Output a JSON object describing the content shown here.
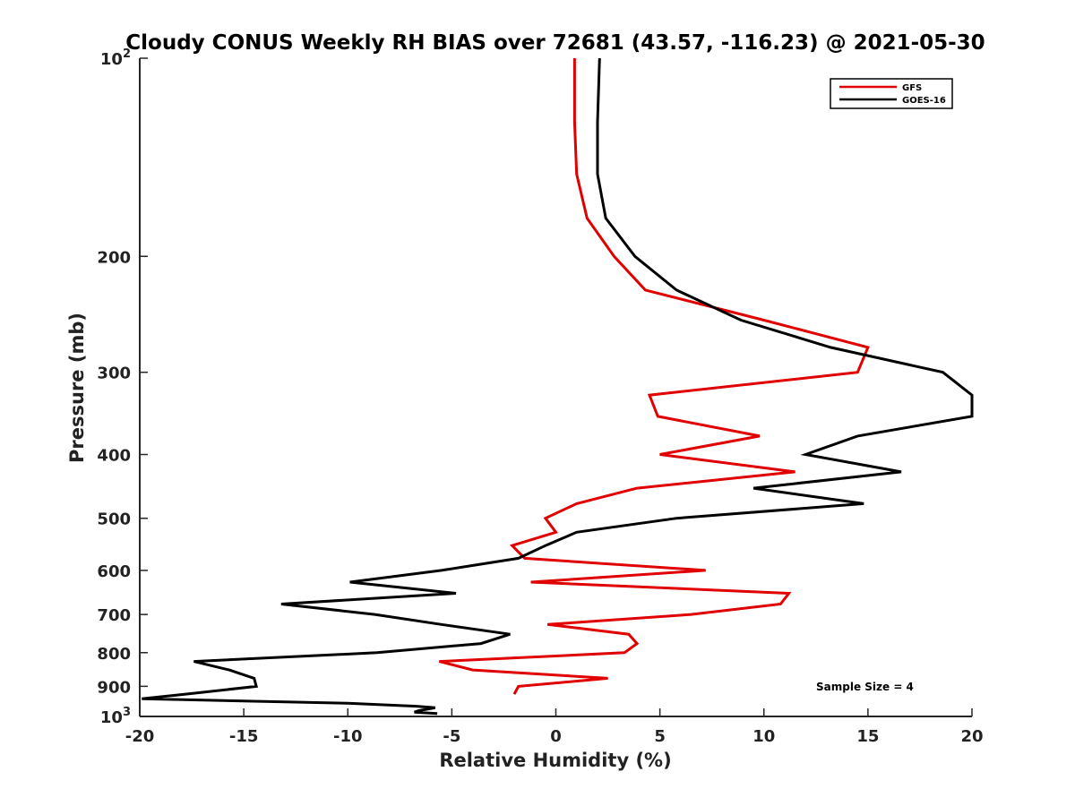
{
  "chart_data": {
    "type": "line",
    "title": "Cloudy CONUS Weekly RH BIAS over 72681 (43.57, -116.23) @ 2021-05-30",
    "xlabel": "Relative Humidity (%)",
    "ylabel": "Pressure (mb)",
    "xlim": [
      -20,
      20
    ],
    "ylim": [
      100,
      1000
    ],
    "yscale": "log",
    "yreversed": true,
    "x_ticks": [
      "-20",
      "-15",
      "-10",
      "-5",
      "0",
      "5",
      "10",
      "15",
      "20"
    ],
    "y_ticks": [
      {
        "value": 100,
        "base": "10",
        "exp": "2"
      },
      {
        "value": 200,
        "label": "200"
      },
      {
        "value": 300,
        "label": "300"
      },
      {
        "value": 400,
        "label": "400"
      },
      {
        "value": 500,
        "label": "500"
      },
      {
        "value": 600,
        "label": "600"
      },
      {
        "value": 700,
        "label": "700"
      },
      {
        "value": 800,
        "label": "800"
      },
      {
        "value": 900,
        "label": "900"
      },
      {
        "value": 1000,
        "base": "10",
        "exp": "3"
      }
    ],
    "grid": false,
    "legend": "top-right",
    "annotation": "Sample Size = 4",
    "series": [
      {
        "name": "GFS",
        "color": "#e00000",
        "points": [
          [
            0.9,
            100
          ],
          [
            0.9,
            125
          ],
          [
            1.0,
            150
          ],
          [
            1.5,
            175
          ],
          [
            2.8,
            200
          ],
          [
            4.3,
            225
          ],
          [
            10.0,
            250
          ],
          [
            15.0,
            275
          ],
          [
            14.5,
            300
          ],
          [
            4.5,
            325
          ],
          [
            4.9,
            350
          ],
          [
            9.8,
            375
          ],
          [
            5.0,
            400
          ],
          [
            11.5,
            425
          ],
          [
            3.9,
            450
          ],
          [
            1.0,
            475
          ],
          [
            -0.5,
            500
          ],
          [
            0.0,
            525
          ],
          [
            -2.1,
            550
          ],
          [
            -1.5,
            575
          ],
          [
            7.2,
            600
          ],
          [
            -1.2,
            625
          ],
          [
            11.2,
            650
          ],
          [
            10.8,
            675
          ],
          [
            6.5,
            700
          ],
          [
            -0.4,
            725
          ],
          [
            3.5,
            750
          ],
          [
            3.9,
            775
          ],
          [
            3.3,
            800
          ],
          [
            -5.6,
            825
          ],
          [
            -4.0,
            850
          ],
          [
            2.5,
            875
          ],
          [
            -1.8,
            900
          ],
          [
            -2.0,
            925
          ]
        ]
      },
      {
        "name": "GOES-16",
        "color": "#000000",
        "points": [
          [
            2.1,
            100
          ],
          [
            2.0,
            125
          ],
          [
            2.0,
            150
          ],
          [
            2.4,
            175
          ],
          [
            3.8,
            200
          ],
          [
            5.8,
            225
          ],
          [
            8.9,
            250
          ],
          [
            13.2,
            275
          ],
          [
            18.6,
            300
          ],
          [
            20.0,
            325
          ],
          [
            20.0,
            350
          ],
          [
            14.5,
            375
          ],
          [
            12.0,
            400
          ],
          [
            16.6,
            425
          ],
          [
            9.5,
            450
          ],
          [
            14.8,
            475
          ],
          [
            5.8,
            500
          ],
          [
            1.0,
            525
          ],
          [
            -0.5,
            550
          ],
          [
            -1.8,
            575
          ],
          [
            -5.5,
            600
          ],
          [
            -9.9,
            625
          ],
          [
            -4.8,
            650
          ],
          [
            -13.2,
            675
          ],
          [
            -8.7,
            700
          ],
          [
            -5.5,
            725
          ],
          [
            -2.2,
            750
          ],
          [
            -3.6,
            775
          ],
          [
            -8.6,
            800
          ],
          [
            -17.4,
            825
          ],
          [
            -15.7,
            850
          ],
          [
            -14.5,
            875
          ],
          [
            -14.4,
            900
          ],
          [
            -17.8,
            925
          ],
          [
            -19.9,
            940
          ],
          [
            -10.0,
            955
          ],
          [
            -6.7,
            965
          ],
          [
            -5.8,
            970
          ],
          [
            -6.6,
            980
          ],
          [
            -6.8,
            985
          ],
          [
            -5.7,
            990
          ]
        ]
      }
    ]
  }
}
